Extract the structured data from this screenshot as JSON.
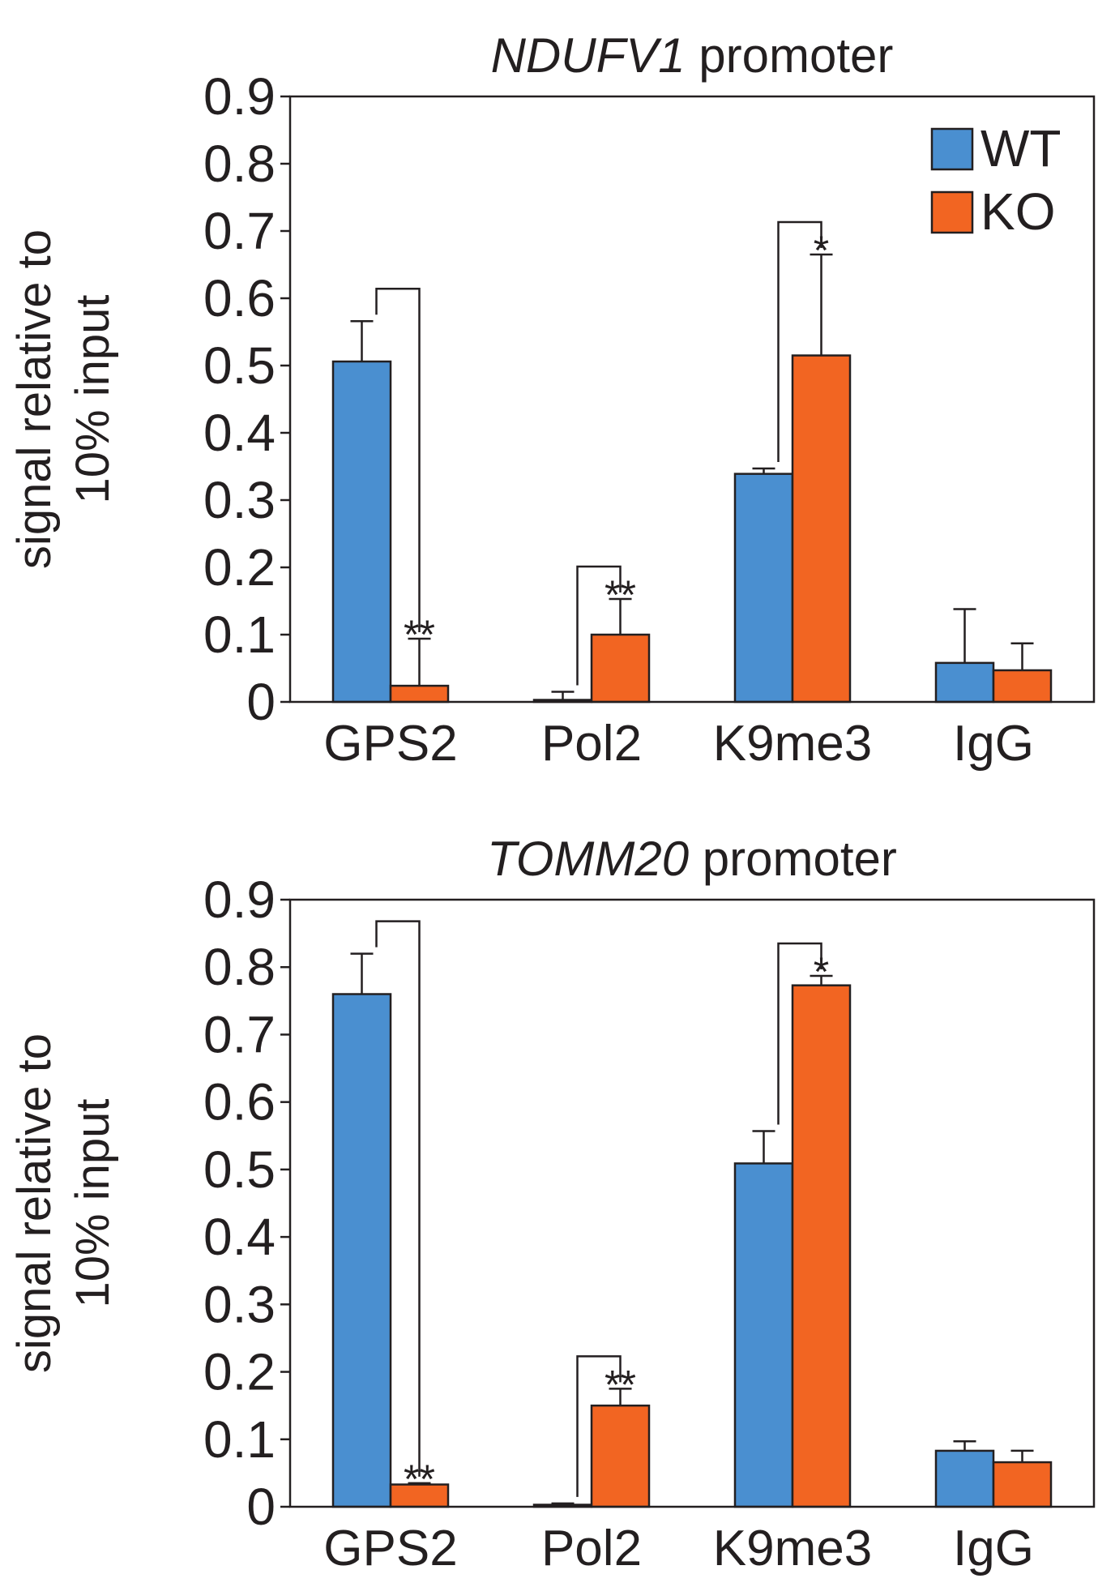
{
  "chart_data": [
    {
      "type": "bar",
      "title_parts": [
        {
          "text": "NDUFV1",
          "italic": true
        },
        {
          "text": "promoter",
          "italic": false
        }
      ],
      "ylabel": [
        "signal relative to",
        "10% input"
      ],
      "categories": [
        "GPS2",
        "Pol2",
        "K9me3",
        "IgG"
      ],
      "series": [
        {
          "name": "WT",
          "color": "#4a8fd0",
          "values": [
            0.506,
            0.003,
            0.339,
            0.058
          ],
          "errors": [
            0.06,
            0.012,
            0.008,
            0.08
          ]
        },
        {
          "name": "KO",
          "color": "#f26522",
          "values": [
            0.024,
            0.1,
            0.515,
            0.047
          ],
          "errors": [
            0.07,
            0.053,
            0.15,
            0.04
          ]
        }
      ],
      "ylim": [
        0,
        0.9
      ],
      "yticks": [
        0,
        0.1,
        0.2,
        0.3,
        0.4,
        0.5,
        0.6,
        0.7,
        0.8,
        0.9
      ],
      "legend": "upper right",
      "annotations": [
        {
          "category": 0,
          "text": "**"
        },
        {
          "category": 1,
          "text": "**"
        },
        {
          "category": 2,
          "text": "*"
        }
      ]
    },
    {
      "type": "bar",
      "title_parts": [
        {
          "text": "TOMM20",
          "italic": true
        },
        {
          "text": "promoter",
          "italic": false
        }
      ],
      "ylabel": [
        "signal relative to",
        "10% input"
      ],
      "categories": [
        "GPS2",
        "Pol2",
        "K9me3",
        "IgG"
      ],
      "series": [
        {
          "color": "#4a8fd0",
          "values": [
            0.76,
            0.003,
            0.509,
            0.083
          ],
          "errors": [
            0.06,
            0.002,
            0.048,
            0.014
          ]
        },
        {
          "color": "#f26522",
          "values": [
            0.033,
            0.15,
            0.773,
            0.066
          ],
          "errors": [
            0.002,
            0.025,
            0.014,
            0.017
          ]
        }
      ],
      "ylim": [
        0,
        0.9
      ],
      "yticks": [
        0,
        0.1,
        0.2,
        0.3,
        0.4,
        0.5,
        0.6,
        0.7,
        0.8,
        0.9
      ],
      "legend": "none",
      "annotations": [
        {
          "category": 0,
          "text": "**"
        },
        {
          "category": 1,
          "text": "**"
        },
        {
          "category": 2,
          "text": "*"
        }
      ]
    }
  ]
}
